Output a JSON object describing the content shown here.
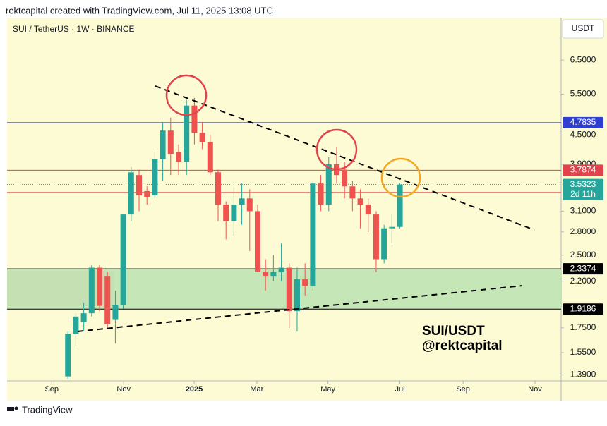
{
  "header": "rektcapital created with TradingView.com, Jul 11, 2025 13:08 UTC",
  "footer": "TradingView",
  "chart_data": {
    "type": "candlestick",
    "title": "SUI / TetherUS · 1W · BINANCE",
    "currency": "USDT",
    "annotations": [
      "SUI/USDT",
      "@rektcapital"
    ],
    "log_scale": true,
    "grid": false,
    "up_color": "#26a69a",
    "down_color": "#ef5350",
    "x": [
      0,
      1,
      2,
      3,
      4,
      5,
      6,
      7,
      8,
      9,
      10,
      11,
      12,
      13,
      14,
      15,
      16,
      17,
      18,
      19,
      20,
      21,
      22,
      23,
      24,
      25,
      26,
      27,
      28,
      29,
      30,
      31,
      32,
      33,
      34,
      35,
      36,
      37,
      38,
      39,
      40,
      41,
      42
    ],
    "open": [
      1.38,
      1.7,
      1.8,
      1.88,
      2.35,
      2.25,
      1.82,
      1.96,
      3.05,
      3.7,
      3.42,
      3.35,
      4.0,
      4.6,
      4.15,
      3.95,
      5.2,
      4.55,
      4.35,
      3.75,
      3.2,
      2.95,
      3.2,
      3.3,
      3.1,
      2.3,
      2.25,
      2.3,
      2.35,
      1.9,
      2.22,
      2.15,
      3.55,
      3.2,
      3.9,
      3.8,
      3.5,
      3.3,
      3.2,
      3.05,
      2.45,
      2.85,
      2.87
    ],
    "high": [
      1.72,
      1.88,
      1.98,
      2.38,
      2.38,
      2.3,
      2.1,
      3.05,
      3.85,
      3.8,
      3.5,
      4.15,
      4.8,
      4.9,
      4.3,
      5.35,
      5.4,
      4.8,
      4.5,
      3.8,
      3.25,
      3.5,
      3.55,
      3.45,
      3.2,
      2.45,
      2.5,
      2.65,
      2.4,
      2.35,
      2.4,
      3.6,
      3.7,
      4.05,
      4.25,
      3.95,
      3.6,
      3.45,
      3.3,
      3.1,
      2.9,
      3.05,
      3.55
    ],
    "low": [
      1.36,
      1.6,
      1.72,
      1.85,
      1.9,
      1.75,
      1.62,
      1.92,
      2.95,
      3.1,
      3.2,
      3.3,
      3.6,
      3.7,
      3.7,
      3.7,
      4.3,
      4.2,
      3.7,
      2.95,
      2.7,
      2.75,
      2.9,
      2.55,
      2.3,
      2.1,
      2.2,
      2.2,
      1.75,
      1.72,
      2.05,
      2.1,
      3.1,
      3.1,
      3.55,
      3.3,
      3.1,
      2.85,
      2.8,
      2.3,
      2.4,
      2.65,
      2.85
    ],
    "close": [
      1.7,
      1.85,
      1.88,
      2.35,
      1.95,
      1.78,
      1.96,
      3.05,
      3.75,
      3.35,
      3.32,
      4.0,
      4.6,
      4.1,
      3.95,
      5.2,
      4.55,
      4.35,
      3.75,
      3.2,
      2.95,
      3.2,
      3.3,
      3.1,
      2.3,
      2.25,
      2.3,
      2.35,
      1.9,
      2.22,
      2.15,
      3.55,
      3.2,
      3.9,
      3.7,
      3.5,
      3.3,
      3.2,
      3.05,
      2.45,
      2.85,
      2.87,
      3.5323
    ],
    "xlim": [
      -7.7,
      62.4
    ],
    "xticks": [
      {
        "value": -2.05,
        "label": "Sep"
      },
      {
        "value": 7.05,
        "label": "Nov"
      },
      {
        "value": 15.97,
        "label": "2025"
      },
      {
        "value": 23.9,
        "label": "Mar"
      },
      {
        "value": 32.9,
        "label": "May"
      },
      {
        "value": 42.0,
        "label": "Jul"
      },
      {
        "value": 50.0,
        "label": "Sep"
      },
      {
        "value": 59.1,
        "label": "Nov"
      }
    ],
    "ylim": [
      1.35,
      8.0
    ],
    "yticks": [
      {
        "value": 6.5,
        "label": "6.5000"
      },
      {
        "value": 5.5,
        "label": "5.5000"
      },
      {
        "value": 4.5,
        "label": "4.5000"
      },
      {
        "value": 3.9,
        "label": "3.9000"
      },
      {
        "value": 3.1,
        "label": "3.1000"
      },
      {
        "value": 2.8,
        "label": "2.8000"
      },
      {
        "value": 2.5,
        "label": "2.5000"
      },
      {
        "value": 2.2,
        "label": "2.2000"
      },
      {
        "value": 1.75,
        "label": "1.7500"
      },
      {
        "value": 1.55,
        "label": "1.5500"
      },
      {
        "value": 1.39,
        "label": "1.3900"
      }
    ],
    "levels": [
      {
        "value": 4.7835,
        "color": "#2f3fd1",
        "style": "solid"
      },
      {
        "value": 3.7874,
        "color": "#e0434b",
        "style": "solid"
      },
      {
        "value": 3.3981,
        "color": "#e0434b",
        "style": "solid"
      },
      {
        "value": 2.3374,
        "color": "#000000",
        "style": "solid"
      },
      {
        "value": 1.9186,
        "color": "#000000",
        "style": "solid"
      },
      {
        "value": 3.5323,
        "color": "#26a69a",
        "style": "dotted",
        "countdown": "2d 11h"
      }
    ],
    "demand_zone": {
      "top": 2.3374,
      "bottom": 1.9186,
      "color": "#bfe3b4"
    }
  }
}
